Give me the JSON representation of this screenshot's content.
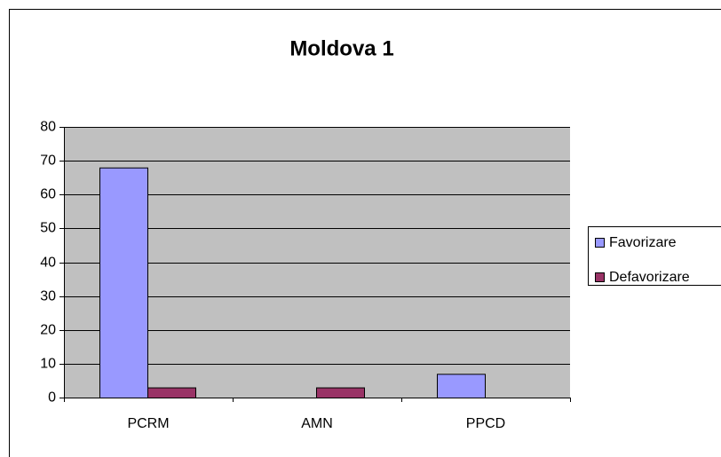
{
  "chart_data": {
    "type": "bar",
    "title": "Moldova 1",
    "categories": [
      "PCRM",
      "AMN",
      "PPCD"
    ],
    "series": [
      {
        "name": "Favorizare",
        "color": "#9999ff",
        "values": [
          68,
          0,
          7
        ]
      },
      {
        "name": "Defavorizare",
        "color": "#993366",
        "values": [
          3,
          3,
          0
        ]
      }
    ],
    "ylim": [
      0,
      80
    ],
    "yticks": [
      0,
      10,
      20,
      30,
      40,
      50,
      60,
      70,
      80
    ],
    "grid": true,
    "legend": "right"
  }
}
